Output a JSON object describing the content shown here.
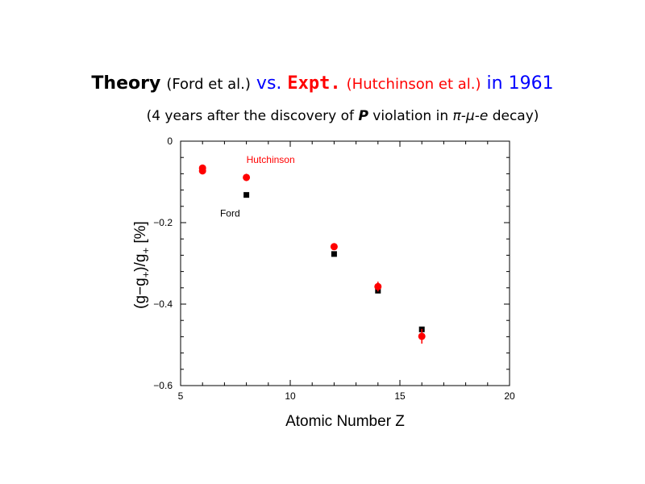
{
  "header": {
    "title_theory": "Theory",
    "title_ford": "(Ford et al.)",
    "title_vs": "vs.",
    "title_expt": "Expt.",
    "title_hutch": "(Hutchinson et al.)",
    "title_year": "in 1961",
    "subtitle_pre": "(4 years after the discovery of ",
    "subtitle_p": "P",
    "subtitle_mid": " violation in ",
    "subtitle_decay": "π-μ-e",
    "subtitle_post": " decay)"
  },
  "chart_data": {
    "type": "scatter",
    "xlabel": "Atomic Number Z",
    "ylabel": "(g−g+)/g+ [%]",
    "xlim": [
      5,
      20
    ],
    "ylim": [
      -0.6,
      0
    ],
    "xticks": [
      5,
      10,
      15,
      20
    ],
    "xtick_labels": [
      "5",
      "10",
      "15",
      "20"
    ],
    "yticks": [
      0,
      -0.2,
      -0.4,
      -0.6
    ],
    "ytick_labels": [
      "0",
      "−0.2",
      "−0.4",
      "−0.6"
    ],
    "grid": false,
    "series": [
      {
        "name": "Ford",
        "color": "#000000",
        "marker": "square",
        "x": [
          8,
          12,
          14,
          16
        ],
        "y": [
          -0.132,
          -0.277,
          -0.367,
          -0.462
        ]
      },
      {
        "name": "Hutchinson",
        "color": "#ff0000",
        "marker": "circle",
        "x": [
          6,
          6,
          8,
          12,
          14,
          16
        ],
        "y": [
          -0.066,
          -0.073,
          -0.089,
          -0.259,
          -0.357,
          -0.479
        ],
        "yerr": [
          0.004,
          0.004,
          0.009,
          0.006,
          0.012,
          0.018
        ]
      }
    ]
  }
}
